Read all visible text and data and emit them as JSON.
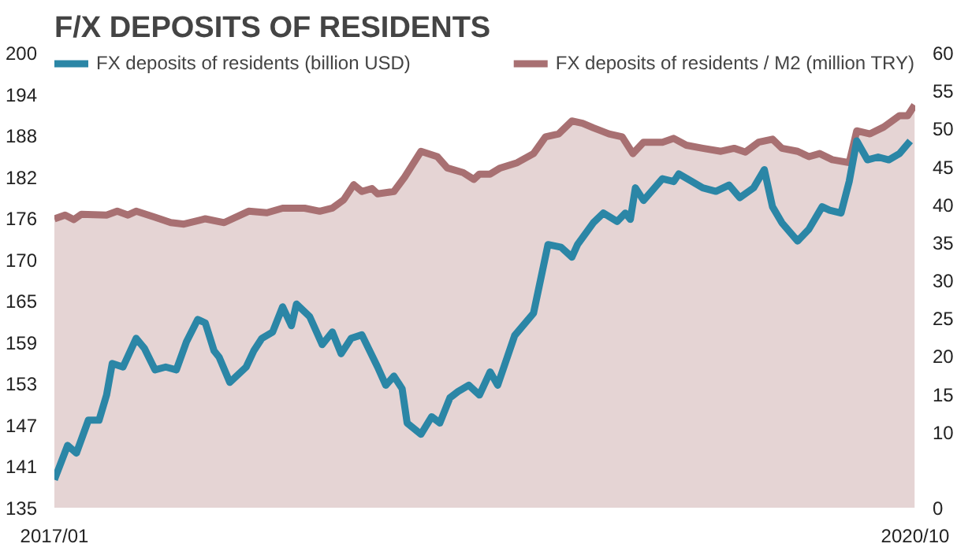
{
  "chart_data": {
    "type": "line",
    "title": "F/X DEPOSITS OF RESIDENTS",
    "legend": "top",
    "grid": false,
    "xlim": [
      "2017-01",
      "2020-10"
    ],
    "xticks": [
      {
        "value": "2017-01",
        "label": "2017/01"
      },
      {
        "value": "2020-10",
        "label": "2020/10"
      }
    ],
    "ylim": [
      135,
      200
    ],
    "yticks": [
      135,
      {
        "value": 140.91,
        "label": "141"
      },
      {
        "value": 146.82,
        "label": "147"
      },
      {
        "value": 152.73,
        "label": "153"
      },
      {
        "value": 158.64,
        "label": "159"
      },
      {
        "value": 164.55,
        "label": "165"
      },
      {
        "value": 170.45,
        "label": "170"
      },
      {
        "value": 176.36,
        "label": "176"
      },
      {
        "value": 182.27,
        "label": "182"
      },
      {
        "value": 188.18,
        "label": "188"
      },
      {
        "value": 194.09,
        "label": "194"
      },
      200
    ],
    "y2lim": [
      0,
      60
    ],
    "y2ticks": [
      0,
      10,
      15,
      20,
      25,
      30,
      35,
      40,
      45,
      50,
      55,
      60
    ],
    "series": [
      {
        "name": "FX deposits of residents / M2 (million TRY)",
        "type": "area",
        "axis": "y2",
        "color": "#a87072",
        "x": [
          "2017-01-01",
          "2017-01-18",
          "2017-02-01",
          "2017-02-13",
          "2017-03-25",
          "2017-04-11",
          "2017-04-28",
          "2017-05-11",
          "2017-06-10",
          "2017-07-05",
          "2017-07-26",
          "2017-08-29",
          "2017-09-28",
          "2017-11-06",
          "2017-12-05",
          "2017-12-30",
          "2018-02-03",
          "2018-02-27",
          "2018-03-19",
          "2018-04-06",
          "2018-04-22",
          "2018-05-05",
          "2018-05-21",
          "2018-05-30",
          "2018-06-25",
          "2018-07-12",
          "2018-08-07",
          "2018-09-02",
          "2018-09-18",
          "2018-10-13",
          "2018-10-30",
          "2018-11-08",
          "2018-11-25",
          "2018-12-11",
          "2019-01-07",
          "2019-02-02",
          "2019-02-21",
          "2019-03-14",
          "2019-04-04",
          "2019-04-21",
          "2019-05-08",
          "2019-06-02",
          "2019-06-23",
          "2019-07-10",
          "2019-07-27",
          "2019-08-26",
          "2019-09-13",
          "2019-10-03",
          "2019-10-29",
          "2019-11-27",
          "2019-12-18",
          "2020-01-05",
          "2020-01-26",
          "2020-02-17",
          "2020-03-03",
          "2020-03-28",
          "2020-04-15",
          "2020-05-02",
          "2020-05-22",
          "2020-06-18",
          "2020-06-30",
          "2020-07-21",
          "2020-08-12",
          "2020-09-06",
          "2020-09-19",
          "2020-09-30"
        ],
        "values": [
          38.1,
          38.6,
          38.0,
          38.7,
          38.6,
          39.1,
          38.6,
          39.1,
          38.3,
          37.6,
          37.4,
          38.1,
          37.6,
          39.1,
          38.9,
          39.5,
          39.5,
          39.1,
          39.5,
          40.6,
          42.6,
          41.7,
          42.1,
          41.4,
          41.7,
          43.6,
          47.0,
          46.3,
          44.8,
          44.2,
          43.3,
          44.0,
          44.0,
          44.8,
          45.5,
          46.7,
          48.9,
          49.3,
          51.0,
          50.7,
          50.1,
          49.3,
          48.9,
          46.7,
          48.2,
          48.2,
          48.7,
          47.8,
          47.4,
          47.0,
          47.4,
          46.9,
          48.2,
          48.6,
          47.4,
          47.0,
          46.3,
          46.7,
          45.9,
          45.5,
          49.7,
          49.3,
          50.2,
          51.7,
          51.7,
          53.1
        ]
      },
      {
        "name": "FX deposits of residents (billion USD)",
        "color": "#2b86a6",
        "x": [
          "2017-01-01",
          "2017-01-22",
          "2017-02-05",
          "2017-02-24",
          "2017-03-13",
          "2017-03-25",
          "2017-04-03",
          "2017-04-20",
          "2017-05-11",
          "2017-05-24",
          "2017-06-10",
          "2017-06-27",
          "2017-07-14",
          "2017-07-30",
          "2017-08-17",
          "2017-08-29",
          "2017-09-12",
          "2017-09-20",
          "2017-10-07",
          "2017-11-02",
          "2017-11-14",
          "2017-11-27",
          "2017-12-14",
          "2017-12-30",
          "2018-01-13",
          "2018-01-21",
          "2018-02-11",
          "2018-03-03",
          "2018-03-19",
          "2018-04-02",
          "2018-04-18",
          "2018-05-05",
          "2018-05-30",
          "2018-06-12",
          "2018-06-25",
          "2018-07-08",
          "2018-07-16",
          "2018-08-07",
          "2018-08-24",
          "2018-09-06",
          "2018-09-22",
          "2018-10-05",
          "2018-10-22",
          "2018-11-08",
          "2018-11-25",
          "2018-12-07",
          "2019-01-03",
          "2019-02-02",
          "2019-02-25",
          "2019-03-18",
          "2019-04-04",
          "2019-04-13",
          "2019-05-08",
          "2019-05-24",
          "2019-06-15",
          "2019-06-28",
          "2019-07-06",
          "2019-07-14",
          "2019-07-27",
          "2019-08-26",
          "2019-09-13",
          "2019-09-21",
          "2019-10-12",
          "2019-10-29",
          "2019-11-19",
          "2019-12-10",
          "2019-12-27",
          "2020-01-18",
          "2020-02-04",
          "2020-02-17",
          "2020-03-03",
          "2020-03-28",
          "2020-04-15",
          "2020-05-06",
          "2020-05-18",
          "2020-06-05",
          "2020-06-18",
          "2020-06-30",
          "2020-07-17",
          "2020-08-03",
          "2020-08-20",
          "2020-09-06",
          "2020-09-23"
        ],
        "values": [
          139.0,
          143.9,
          142.8,
          147.5,
          147.5,
          151.1,
          155.6,
          155.1,
          159.2,
          157.8,
          154.7,
          155.1,
          154.7,
          158.7,
          161.9,
          161.4,
          157.4,
          156.5,
          152.9,
          155.1,
          157.4,
          159.2,
          160.1,
          163.7,
          161.0,
          164.1,
          162.3,
          158.3,
          160.1,
          157.0,
          159.2,
          159.7,
          155.1,
          152.5,
          153.8,
          152.0,
          147.1,
          145.5,
          148.0,
          147.1,
          150.7,
          151.6,
          152.5,
          151.1,
          154.4,
          152.5,
          159.6,
          162.8,
          172.6,
          172.2,
          170.8,
          172.6,
          175.7,
          177.1,
          175.9,
          177.1,
          176.2,
          180.7,
          178.9,
          182.0,
          181.6,
          182.7,
          181.6,
          180.7,
          180.2,
          181.1,
          179.3,
          180.7,
          183.3,
          178.0,
          175.7,
          173.1,
          174.8,
          178.0,
          177.5,
          177.1,
          181.6,
          187.4,
          184.7,
          185.1,
          184.7,
          185.6,
          187.4
        ]
      }
    ]
  }
}
